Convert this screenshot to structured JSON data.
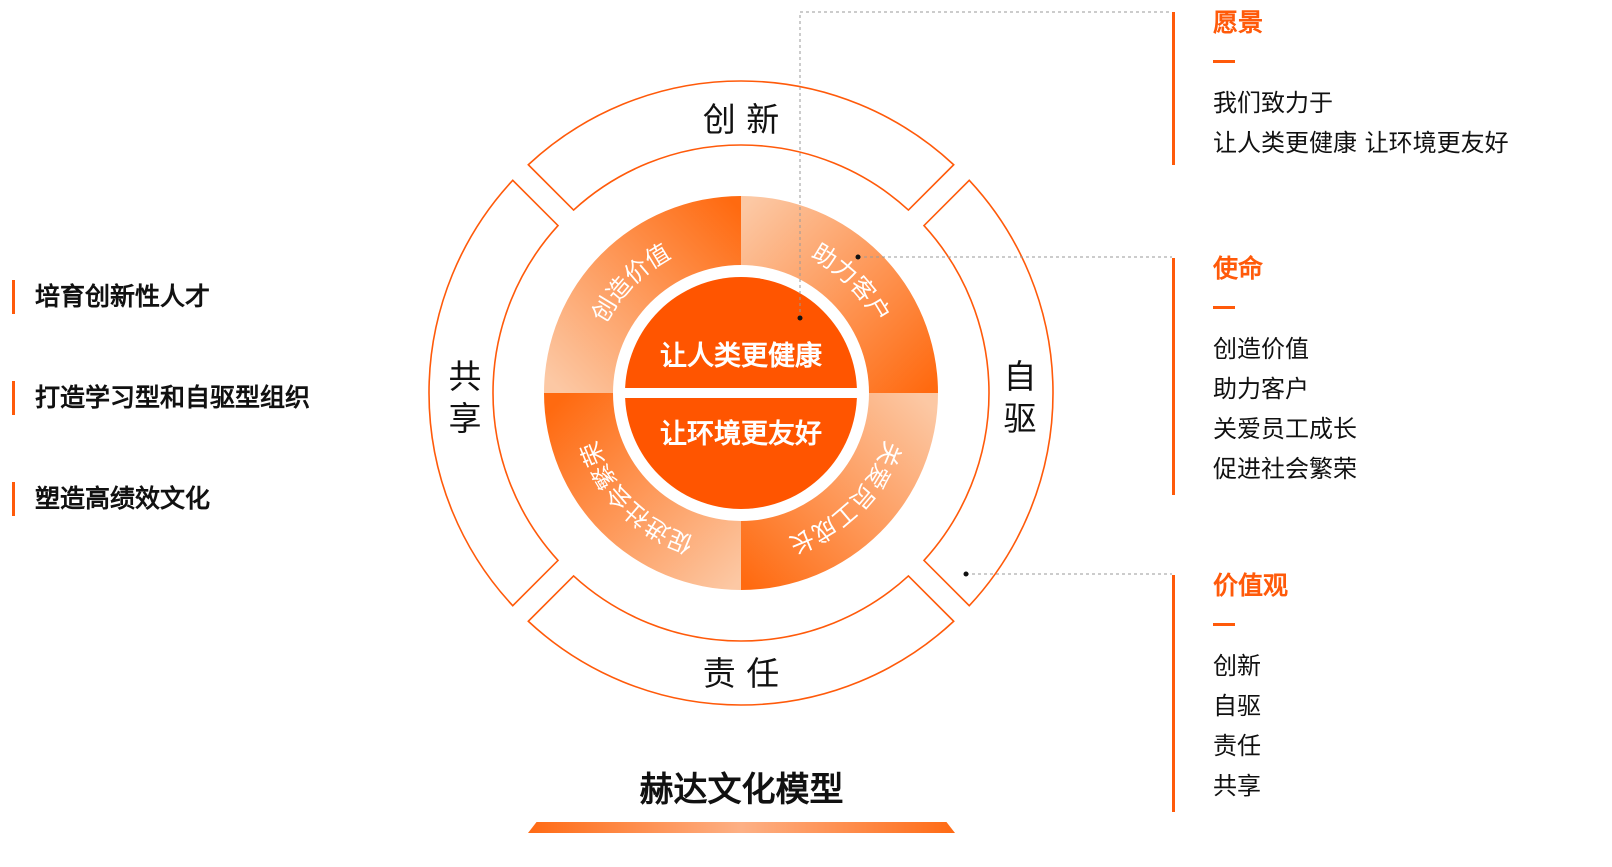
{
  "colors": {
    "accent": "#ff5a0a",
    "light": "#fcc8a4",
    "core": "#ff5500"
  },
  "core": {
    "top": "让人类更健康",
    "bottom": "让环境更友好"
  },
  "mission_ring": [
    "创造价值",
    "助力客户",
    "关爱员工成长",
    "促进社会繁荣"
  ],
  "values_ring": {
    "top": "创 新",
    "right": "自\n驱",
    "bottom": "责 任",
    "left": "共\n享",
    "right_chars": [
      "自",
      "驱"
    ],
    "left_chars": [
      "共",
      "享"
    ]
  },
  "left_items": [
    "培育创新性人才",
    "打造学习型和自驱型组织",
    "塑造高绩效文化"
  ],
  "panels": [
    {
      "title": "愿景",
      "lines": [
        "我们致力于",
        "让人类更健康 让环境更友好"
      ]
    },
    {
      "title": "使命",
      "lines": [
        "创造价值",
        "助力客户",
        "关爱员工成长",
        "促进社会繁荣"
      ]
    },
    {
      "title": "价值观",
      "lines": [
        "创新",
        "自驱",
        "责任",
        "共享"
      ]
    }
  ],
  "model_title": "赫达文化模型"
}
